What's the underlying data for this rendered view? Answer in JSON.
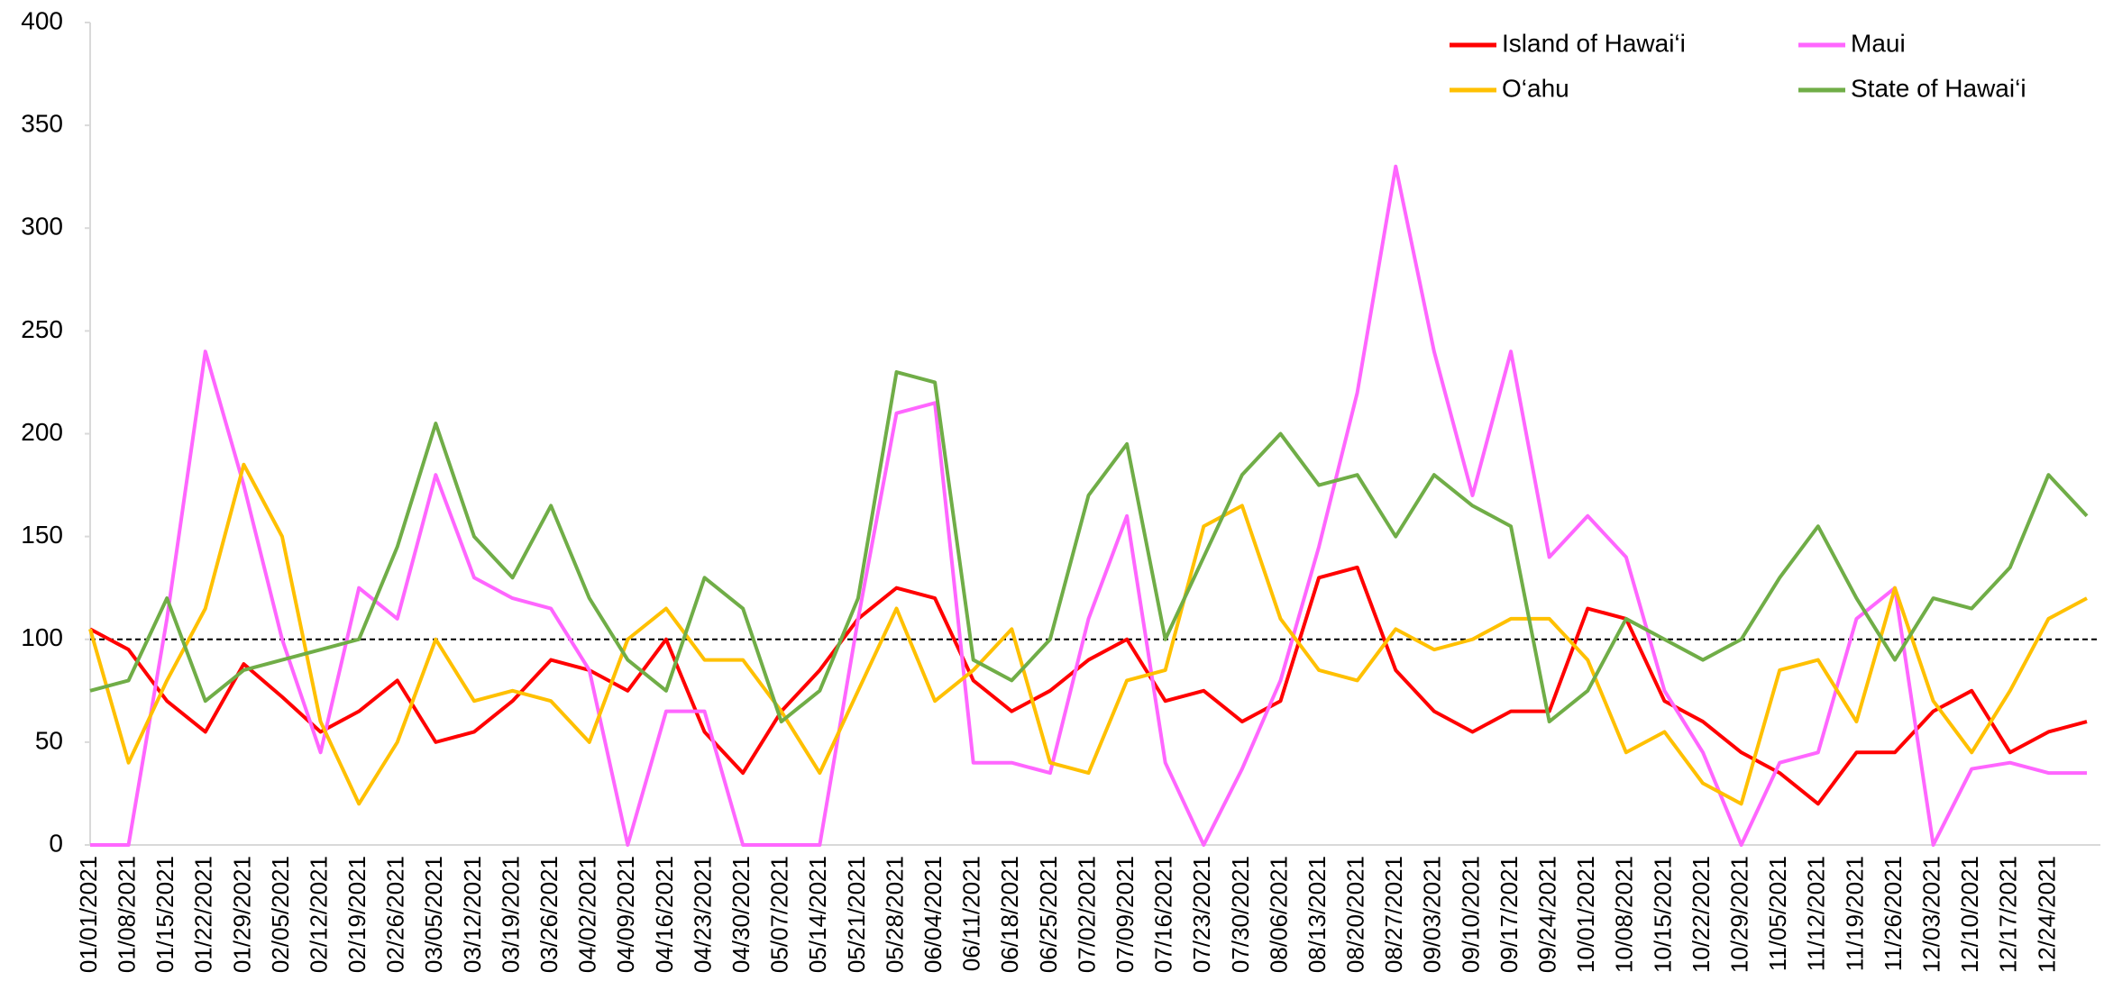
{
  "chart_data": {
    "type": "line",
    "categories": [
      "01/01/2021",
      "01/08/2021",
      "01/15/2021",
      "01/22/2021",
      "01/29/2021",
      "02/05/2021",
      "02/12/2021",
      "02/19/2021",
      "02/26/2021",
      "03/05/2021",
      "03/12/2021",
      "03/19/2021",
      "03/26/2021",
      "04/02/2021",
      "04/09/2021",
      "04/16/2021",
      "04/23/2021",
      "04/30/2021",
      "05/07/2021",
      "05/14/2021",
      "05/21/2021",
      "05/28/2021",
      "06/04/2021",
      "06/11/2021",
      "06/18/2021",
      "06/25/2021",
      "07/02/2021",
      "07/09/2021",
      "07/16/2021",
      "07/23/2021",
      "07/30/2021",
      "08/06/2021",
      "08/13/2021",
      "08/20/2021",
      "08/27/2021",
      "09/03/2021",
      "09/10/2021",
      "09/17/2021",
      "09/24/2021",
      "10/01/2021",
      "10/08/2021",
      "10/15/2021",
      "10/22/2021",
      "10/29/2021",
      "11/05/2021",
      "11/12/2021",
      "11/19/2021",
      "11/26/2021",
      "12/03/2021",
      "12/10/2021",
      "12/17/2021",
      "12/24/2021",
      null
    ],
    "series": [
      {
        "name": "Island of Hawai‘i",
        "color": "#ff0000",
        "values": [
          105,
          95,
          70,
          55,
          88,
          72,
          55,
          65,
          80,
          50,
          55,
          70,
          90,
          85,
          75,
          100,
          55,
          35,
          65,
          85,
          110,
          125,
          120,
          80,
          65,
          75,
          90,
          100,
          70,
          75,
          60,
          70,
          130,
          135,
          85,
          65,
          55,
          65,
          65,
          115,
          110,
          70,
          60,
          45,
          35,
          20,
          45,
          45,
          65,
          75,
          45,
          55,
          60
        ]
      },
      {
        "name": "Maui",
        "color": "#ff66ff",
        "values": [
          0,
          0,
          110,
          240,
          175,
          100,
          45,
          125,
          110,
          180,
          130,
          120,
          115,
          85,
          0,
          65,
          65,
          0,
          0,
          0,
          110,
          210,
          215,
          40,
          40,
          35,
          110,
          160,
          40,
          0,
          37,
          80,
          145,
          220,
          330,
          240,
          170,
          240,
          140,
          160,
          140,
          75,
          45,
          0,
          40,
          45,
          110,
          125,
          0,
          37,
          40,
          35,
          35
        ]
      },
      {
        "name": "O‘ahu",
        "color": "#ffc000",
        "values": [
          105,
          40,
          80,
          115,
          185,
          150,
          60,
          20,
          50,
          100,
          70,
          75,
          70,
          50,
          100,
          115,
          90,
          90,
          65,
          35,
          75,
          115,
          70,
          85,
          105,
          40,
          35,
          80,
          85,
          155,
          165,
          110,
          85,
          80,
          105,
          95,
          100,
          110,
          110,
          90,
          45,
          55,
          30,
          20,
          85,
          90,
          60,
          125,
          70,
          45,
          75,
          110,
          120
        ]
      },
      {
        "name": "State of Hawai‘i",
        "color": "#70ad47",
        "values": [
          75,
          80,
          120,
          70,
          85,
          90,
          95,
          100,
          145,
          205,
          150,
          130,
          165,
          120,
          90,
          75,
          130,
          115,
          60,
          75,
          120,
          230,
          225,
          90,
          80,
          100,
          170,
          195,
          100,
          140,
          180,
          200,
          175,
          180,
          150,
          180,
          165,
          155,
          60,
          75,
          110,
          100,
          90,
          100,
          130,
          155,
          120,
          90,
          120,
          115,
          135,
          180,
          160
        ]
      }
    ],
    "ylim": [
      0,
      400
    ],
    "yticks": [
      0,
      50,
      100,
      150,
      200,
      250,
      300,
      350,
      400
    ],
    "reference_line": 100,
    "grid": false
  }
}
